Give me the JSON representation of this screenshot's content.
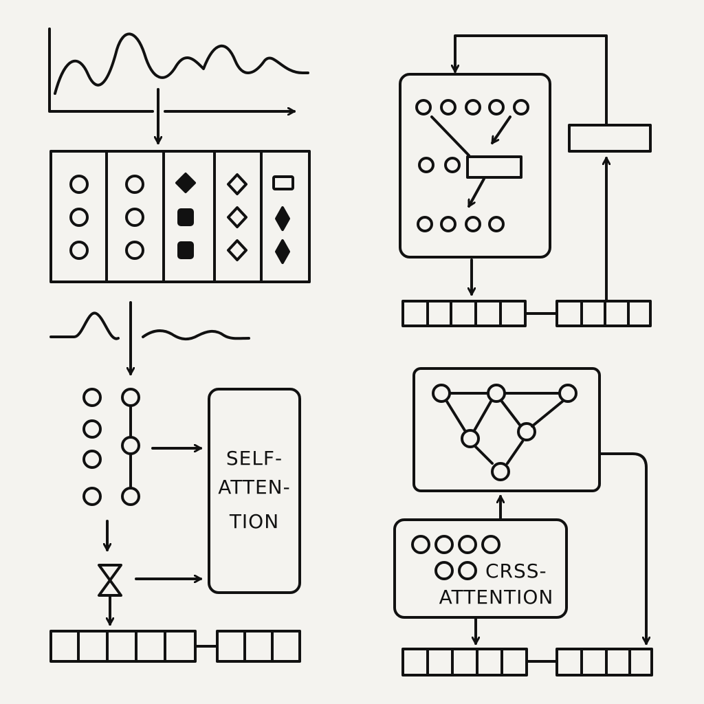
{
  "colors": {
    "background": "#f4f3ef",
    "ink": "#111111"
  },
  "labels": {
    "self_attention": [
      "SELF-",
      "ATTEN-",
      "TION"
    ],
    "cross_attention": [
      "CRSS-",
      "ATTENTION"
    ]
  }
}
